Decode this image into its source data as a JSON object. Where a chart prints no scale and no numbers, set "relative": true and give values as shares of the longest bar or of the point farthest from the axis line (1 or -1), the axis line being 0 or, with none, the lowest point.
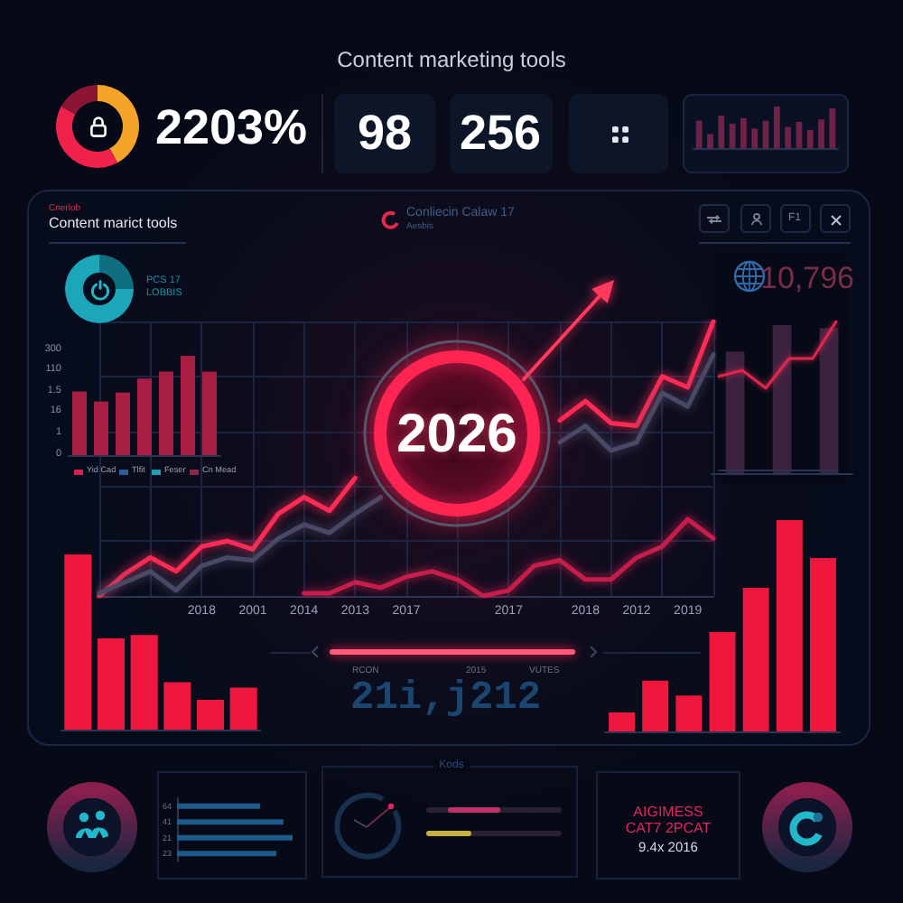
{
  "chart_data": [
    {
      "type": "other",
      "title": "Content marketing tools",
      "annotations": [
        "2203%",
        "98",
        "256"
      ]
    },
    {
      "type": "donut",
      "categories": [
        null,
        null,
        null
      ],
      "values": [
        42,
        41,
        17
      ],
      "colors": [
        "#f5a42a",
        "#f0214b",
        "#8c1536"
      ]
    },
    {
      "type": "bar",
      "relative": true,
      "categories": [
        null,
        null,
        null,
        null,
        null,
        null,
        null,
        null,
        null,
        null,
        null,
        null,
        null
      ],
      "values": [
        0.66,
        0.34,
        0.78,
        0.59,
        0.72,
        0.47,
        0.66,
        1,
        0.51,
        0.63,
        0.44,
        0.69,
        0.96
      ],
      "color": "#6e2248"
    },
    {
      "type": "donut",
      "categories": [
        null,
        null
      ],
      "values": [
        25,
        75
      ],
      "colors": [
        "#0f6f80",
        "#1ba6ba"
      ],
      "annotations": [
        "PCS 17",
        "LOBBIS"
      ]
    },
    {
      "type": "bar",
      "title": "Content marict tools",
      "subtitle": "Cnerlob",
      "relative": true,
      "annotations": [
        "Yid Cad",
        "Tlfit",
        "Feser",
        "Cn Mead"
      ],
      "categories": [
        null,
        null,
        null,
        null,
        null,
        null,
        null
      ],
      "values": [
        0.64,
        0.54,
        0.63,
        0.77,
        0.84,
        1,
        0.84
      ],
      "color": "#a81d42"
    },
    {
      "type": "other",
      "annotations": [
        "300",
        "110",
        "1.5",
        "16",
        "1",
        "0"
      ]
    },
    {
      "type": "line",
      "title": "Conliecin Calaw 17",
      "subtitle": "Aesbis",
      "annotations": [
        "2026"
      ],
      "relative": true,
      "grid": true,
      "marker": "none",
      "categories": [
        null,
        null,
        null,
        null,
        "2018",
        null,
        "2001",
        null,
        "2014",
        null,
        "2013",
        null,
        "2017",
        null,
        null,
        null,
        "2017",
        null,
        null,
        "2018",
        null,
        "2012",
        null,
        "2019",
        null
      ],
      "series": [
        {
          "color": "#ff2a55",
          "values": [
            0,
            0.08,
            0.14,
            0.09,
            0.18,
            0.2,
            0.17,
            0.3,
            0.36,
            0.31,
            0.43,
            null,
            null,
            null,
            null,
            null,
            null,
            null,
            0.64,
            0.71,
            0.63,
            0.62,
            0.8,
            0.76,
            1
          ]
        },
        {
          "color": "#4a4866",
          "values": [
            0.01,
            0.05,
            0.09,
            0.02,
            0.11,
            0.14,
            0.13,
            0.21,
            0.26,
            0.23,
            0.3,
            0.36,
            null,
            null,
            null,
            null,
            null,
            null,
            0.56,
            0.62,
            0.53,
            0.56,
            0.74,
            0.69,
            0.88
          ]
        },
        {
          "color": "#c81d4c",
          "values": [
            null,
            null,
            null,
            null,
            null,
            null,
            null,
            null,
            0.01,
            0.01,
            0.05,
            0.03,
            0.07,
            0.09,
            0.06,
            0,
            0.02,
            0.11,
            0.13,
            0.06,
            0.06,
            0.14,
            0.18,
            0.28,
            0.21
          ]
        }
      ]
    },
    {
      "type": "bar",
      "title": "10,796",
      "annotations": [
        "F1"
      ],
      "relative": true,
      "categories": [
        null,
        null,
        null
      ],
      "values": [
        0.82,
        1,
        0.98
      ],
      "color": "#3d2240"
    },
    {
      "type": "line",
      "relative": true,
      "marker": "none",
      "categories": [
        null,
        null,
        null,
        null,
        null,
        null
      ],
      "values": [
        0.63,
        0.67,
        0.55,
        0.75,
        0.75,
        1
      ],
      "color": "#e0284f"
    },
    {
      "type": "bar",
      "relative": true,
      "categories": [
        null,
        null,
        null,
        null,
        null,
        null
      ],
      "values": [
        1,
        0.52,
        0.54,
        0.27,
        0.17,
        0.24
      ],
      "color": "#f0173f"
    },
    {
      "type": "other",
      "annotations": [
        "RCON",
        "21i,j212",
        "2015",
        "VUTES"
      ]
    },
    {
      "type": "bar",
      "relative": true,
      "categories": [
        null,
        null,
        null,
        null,
        null,
        null,
        null
      ],
      "values": [
        0.09,
        0.24,
        0.17,
        0.47,
        0.68,
        1,
        0.82
      ],
      "color": "#f0173f"
    },
    {
      "type": "bar",
      "orientation": "horizontal",
      "relative": true,
      "categories": [
        "64",
        "41",
        "21",
        "23"
      ],
      "values": [
        0.72,
        0.92,
        1,
        0.86
      ],
      "color": "#1d5c8a"
    },
    {
      "type": "other",
      "title": "Kods"
    },
    {
      "type": "other",
      "annotations": [
        "AIGIMESS",
        "CAT7 2PCAT",
        "9.4x 2016"
      ]
    }
  ]
}
